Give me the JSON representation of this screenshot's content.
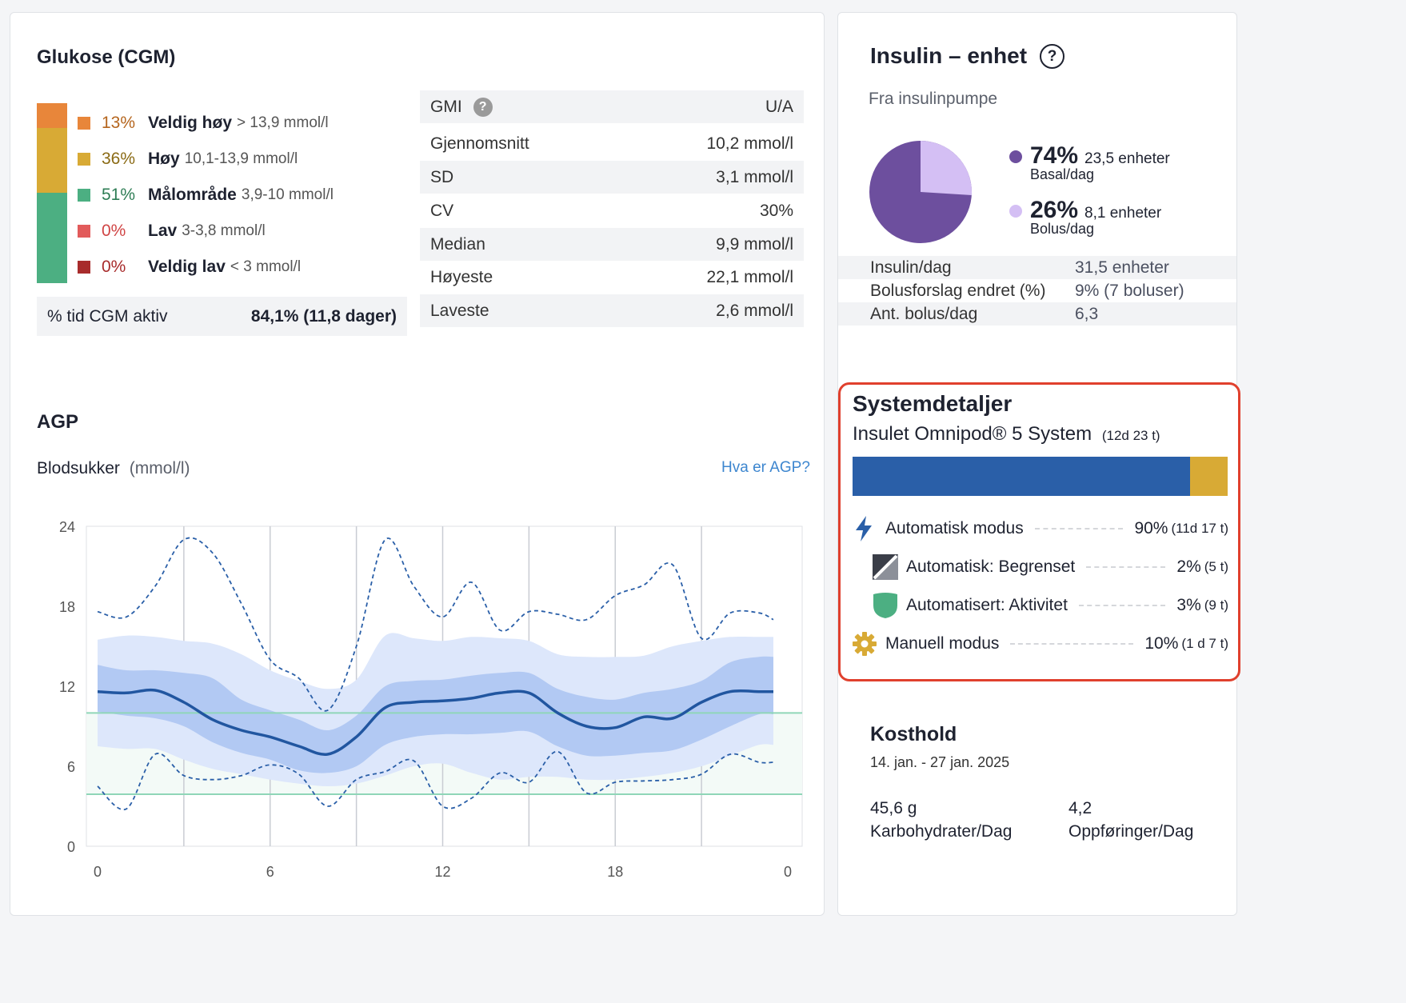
{
  "glucose": {
    "title": "Glukose (CGM)",
    "ranges": [
      {
        "pct": "13%",
        "label": "Veldig høy",
        "range": "> 13,9 mmol/l",
        "color": "#e8863a",
        "pct_color": "#b5651d",
        "fraction": 0.13
      },
      {
        "pct": "36%",
        "label": "Høy",
        "range": "10,1-13,9 mmol/l",
        "color": "#d8aa35",
        "pct_color": "#8a6a14",
        "fraction": 0.36
      },
      {
        "pct": "51%",
        "label": "Målområde",
        "range": "3,9-10 mmol/l",
        "color": "#4caf82",
        "pct_color": "#2e7d55",
        "fraction": 0.51
      },
      {
        "pct": "0%",
        "label": "Lav",
        "range": "3-3,8 mmol/l",
        "color": "#e25b5b",
        "pct_color": "#d04545",
        "fraction": 0
      },
      {
        "pct": "0%",
        "label": "Veldig lav",
        "range": "< 3 mmol/l",
        "color": "#a82c2c",
        "pct_color": "#a82c2c",
        "fraction": 0
      }
    ],
    "cgm_active_label": "% tid CGM aktiv",
    "cgm_active_value": "84,1% (11,8 dager)",
    "stats": [
      {
        "label": "GMI",
        "value": "U/A"
      },
      {
        "label": "Gjennomsnitt",
        "value": "10,2 mmol/l"
      },
      {
        "label": "SD",
        "value": "3,1 mmol/l"
      },
      {
        "label": "CV",
        "value": "30%"
      },
      {
        "label": "Median",
        "value": "9,9 mmol/l"
      },
      {
        "label": "Høyeste",
        "value": "22,1 mmol/l"
      },
      {
        "label": "Laveste",
        "value": "2,6 mmol/l"
      }
    ]
  },
  "agp": {
    "title": "AGP",
    "subtitle": "Blodsukker",
    "unit": "(mmol/l)",
    "link": "Hva er AGP?"
  },
  "chart_data": {
    "type": "area",
    "title": "AGP",
    "ylabel": "Blodsukker (mmol/l)",
    "xlabel": "",
    "x_ticks": [
      "0",
      "6",
      "12",
      "18",
      "0"
    ],
    "y_ticks": [
      "24",
      "18",
      "12",
      "6",
      "0"
    ],
    "ylim": [
      0,
      24
    ],
    "xlim": [
      0,
      24
    ],
    "target_range": [
      3.9,
      10
    ],
    "x": [
      0,
      1,
      2,
      3,
      4,
      5,
      6,
      7,
      8,
      9,
      10,
      11,
      12,
      13,
      14,
      15,
      16,
      17,
      18,
      19,
      20,
      21,
      22,
      23,
      23.5
    ],
    "series": [
      {
        "name": "Median",
        "values": [
          11.6,
          11.5,
          11.7,
          10.8,
          9.5,
          8.7,
          8.2,
          7.5,
          6.9,
          8.2,
          10.4,
          10.8,
          10.9,
          11.1,
          11.5,
          11.5,
          10.0,
          9.0,
          8.9,
          9.7,
          9.6,
          10.8,
          11.6,
          11.6,
          11.6
        ]
      },
      {
        "name": "P25",
        "values": [
          10.1,
          9.8,
          9.6,
          9.0,
          7.8,
          7.0,
          6.5,
          5.7,
          5.5,
          6.0,
          7.6,
          8.2,
          8.4,
          8.4,
          8.5,
          8.6,
          7.5,
          6.8,
          6.8,
          7.0,
          7.2,
          8.0,
          9.0,
          9.9,
          9.9
        ]
      },
      {
        "name": "P75",
        "values": [
          13.6,
          13.2,
          13.2,
          13.0,
          12.6,
          11.0,
          10.2,
          9.5,
          8.7,
          9.8,
          12.0,
          12.4,
          12.5,
          12.8,
          13.0,
          13.0,
          11.8,
          11.2,
          11.0,
          11.5,
          11.8,
          12.4,
          13.8,
          14.2,
          14.2
        ]
      },
      {
        "name": "P5",
        "values": [
          7.5,
          7.3,
          7.3,
          6.5,
          5.8,
          5.4,
          5.0,
          4.7,
          4.5,
          4.7,
          5.3,
          6.0,
          6.2,
          5.5,
          5.0,
          5.2,
          5.2,
          5.0,
          5.0,
          5.2,
          5.5,
          6.0,
          6.8,
          7.6,
          7.6
        ]
      },
      {
        "name": "P95",
        "values": [
          15.5,
          15.8,
          15.7,
          15.4,
          15.2,
          14.4,
          13.2,
          12.4,
          11.8,
          12.5,
          15.8,
          15.6,
          15.4,
          15.7,
          15.6,
          15.4,
          14.4,
          14.2,
          14.2,
          14.3,
          15.0,
          15.4,
          15.7,
          15.7,
          15.7
        ]
      },
      {
        "name": "Max",
        "values": [
          17.6,
          17.2,
          19.5,
          23.0,
          22.0,
          18.2,
          14.0,
          12.6,
          10.2,
          15.0,
          23.0,
          19.5,
          17.2,
          19.8,
          16.2,
          17.6,
          17.4,
          17.0,
          18.8,
          19.6,
          21.1,
          15.6,
          17.5,
          17.5,
          17.0
        ]
      },
      {
        "name": "Min",
        "values": [
          4.5,
          2.8,
          6.9,
          5.3,
          5.0,
          5.3,
          6.1,
          5.4,
          3.0,
          5.0,
          5.6,
          6.4,
          3.0,
          3.6,
          5.5,
          4.8,
          7.1,
          4.0,
          4.8,
          4.9,
          5.0,
          5.4,
          6.9,
          6.3,
          6.3
        ]
      }
    ]
  },
  "insulin": {
    "title": "Insulin – enhet",
    "help_icon": "question-circle-icon",
    "source": "Fra insulinpumpe",
    "basal": {
      "pct": "74%",
      "amount": "23,5 enheter",
      "label": "Basal/dag",
      "fraction": 0.74,
      "color": "#6d4f9e"
    },
    "bolus": {
      "pct": "26%",
      "amount": "8,1 enheter",
      "label": "Bolus/dag",
      "fraction": 0.26,
      "color": "#d4bff4"
    },
    "rows": [
      {
        "label": "Insulin/dag",
        "value": "31,5 enheter"
      },
      {
        "label": "Bolusforslag endret (%)",
        "value": "9% (7 boluser)"
      },
      {
        "label": "Ant. bolus/dag",
        "value": "6,3"
      }
    ]
  },
  "system": {
    "title": "Systemdetaljer",
    "device": "Insulet Omnipod® 5 System",
    "duration": "(12d 23 t)",
    "bar": [
      {
        "fraction": 0.9,
        "color": "#2a5fa8"
      },
      {
        "fraction": 0.1,
        "color": "#d8aa35"
      }
    ],
    "modes": [
      {
        "icon": "lightning-icon",
        "label": "Automatisk modus",
        "pct": "90%",
        "dur": "(11d 17 t)"
      },
      {
        "icon": "limited-icon",
        "label": "Automatisk: Begrenset",
        "pct": "2%",
        "dur": "(5 t)"
      },
      {
        "icon": "shield-icon",
        "label": "Automatisert: Aktivitet",
        "pct": "3%",
        "dur": "(9 t)"
      },
      {
        "icon": "gear-icon",
        "label": "Manuell modus",
        "pct": "10%",
        "dur": "(1 d 7 t)"
      }
    ],
    "highlight_color": "#e0402d"
  },
  "diet": {
    "title": "Kosthold",
    "dates": "14. jan. - 27 jan. 2025",
    "carbs_value": "45,6 g",
    "carbs_label": "Karbohydrater/Dag",
    "entries_value": "4,2",
    "entries_label": "Oppføringer/Dag"
  }
}
